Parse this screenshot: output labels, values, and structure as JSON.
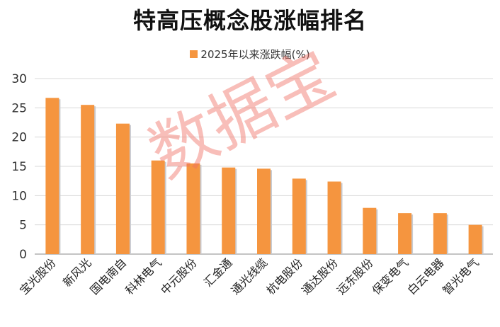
{
  "title": "特高压概念股涨幅排名",
  "legend": "2025年以来涨跌幅(%)",
  "watermark": "数据宝",
  "colors": {
    "bar": "#f5953f",
    "bar_shadow": "#c9cbd0",
    "grid": "#d9d9d9",
    "axis": "#888888"
  },
  "chart_data": {
    "type": "bar",
    "categories": [
      "宝光股份",
      "新风光",
      "国电南自",
      "科林电气",
      "中元股份",
      "汇金通",
      "通光线缆",
      "杭电股份",
      "通达股份",
      "远东股份",
      "保变电气",
      "白云电器",
      "智光电气"
    ],
    "series": [
      {
        "name": "2025年以来涨跌幅(%)",
        "values": [
          26.7,
          25.5,
          22.3,
          16.0,
          15.5,
          14.8,
          14.6,
          12.9,
          12.4,
          7.9,
          7.0,
          7.0,
          5.0
        ]
      }
    ],
    "yticks": [
      "0",
      "5",
      "10",
      "15",
      "20",
      "25",
      "30"
    ],
    "ylim": [
      0,
      30
    ],
    "grid": true,
    "legend_position": "top-center"
  }
}
